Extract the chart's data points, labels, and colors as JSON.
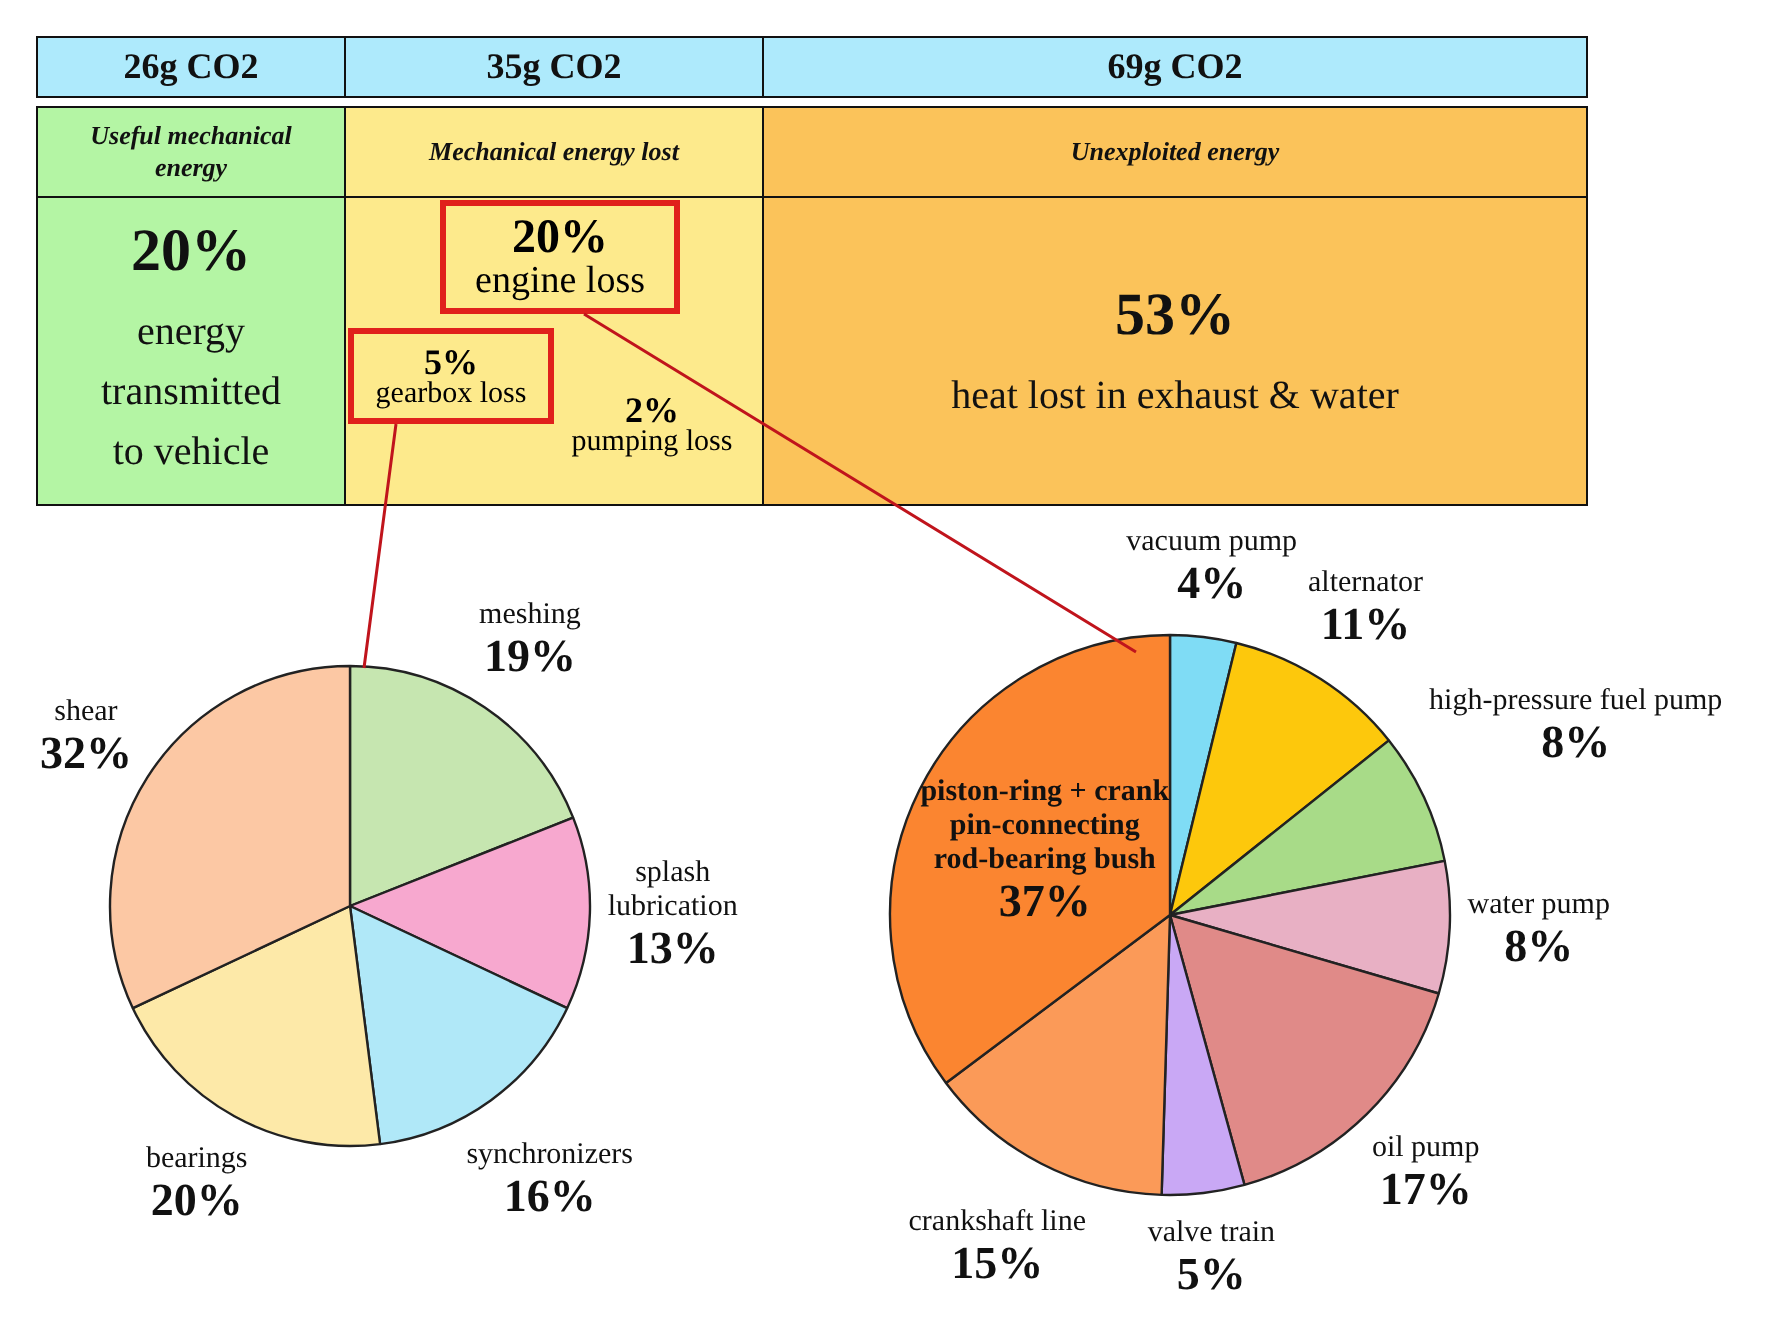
{
  "chart_data": [
    {
      "type": "other",
      "annotations": [
        "26g CO2",
        "35g CO2",
        "69g CO2",
        "Useful mechanical energy",
        "Mechanical energy lost",
        "Unexploited energy",
        "20%",
        "energy transmitted to vehicle",
        "20%",
        "engine loss",
        "5%",
        "gearbox loss",
        "2%",
        "pumping loss",
        "53%",
        "heat lost in exhaust & water"
      ]
    },
    {
      "type": "pie",
      "categories": [
        "meshing",
        "splash lubrication",
        "synchronizers",
        "bearings",
        "shear"
      ],
      "values": [
        19,
        13,
        16,
        20,
        32
      ],
      "value_labels": [
        "19%",
        "13%",
        "16%",
        "20%",
        "32%"
      ],
      "colors": [
        "#c6e6b0",
        "#f7a8cf",
        "#b0e8f8",
        "#fde9a8",
        "#fcc8a4"
      ],
      "legend": false
    },
    {
      "type": "pie",
      "categories": [
        "vacuum pump",
        "alternator",
        "high-pressure fuel pump",
        "water pump",
        "oil pump",
        "valve train",
        "crankshaft line",
        "piston-ring + crank pin-connecting rod-bearing bush"
      ],
      "values": [
        4,
        11,
        8,
        8,
        17,
        5,
        15,
        37
      ],
      "value_labels": [
        "4%",
        "11%",
        "8%",
        "8%",
        "17%",
        "5%",
        "15%",
        "37%"
      ],
      "colors": [
        "#7fdcf5",
        "#fdc80c",
        "#a8db88",
        "#e8b0c4",
        "#e08a88",
        "#c9a8f5",
        "#fb9a58",
        "#fb8530"
      ],
      "legend": false
    }
  ]
}
